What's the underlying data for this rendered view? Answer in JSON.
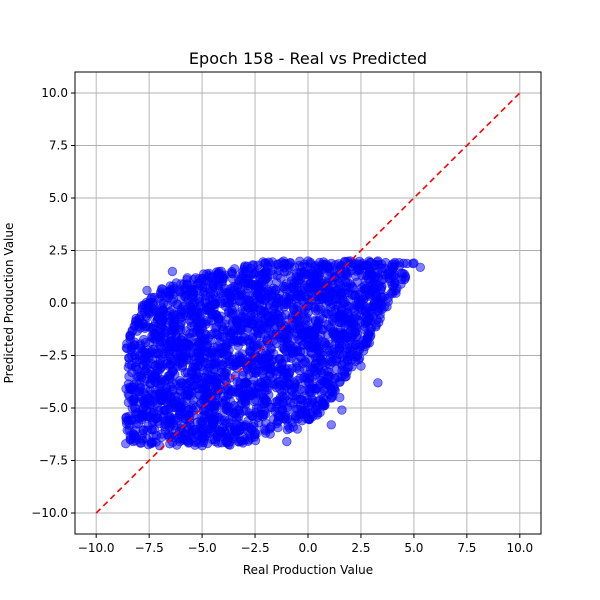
{
  "chart_data": {
    "type": "scatter",
    "title": "Epoch 158 - Real vs Predicted",
    "xlabel": "Real Production Value",
    "ylabel": "Predicted Production Value",
    "xlim": [
      -11,
      11
    ],
    "ylim": [
      -11,
      11
    ],
    "xticks": [
      "−10.0",
      "−7.5",
      "−5.0",
      "−2.5",
      "0.0",
      "2.5",
      "5.0",
      "7.5",
      "10.0"
    ],
    "yticks": [
      "10.0",
      "7.5",
      "5.0",
      "2.5",
      "0.0",
      "−2.5",
      "−5.0",
      "−7.5",
      "−10.0"
    ],
    "grid": true,
    "colors": {
      "points": "#0000ff",
      "reference_line": "#ff0000",
      "grid": "#b0b0b0"
    },
    "reference_line": {
      "from": [
        -10,
        -10
      ],
      "to": [
        10,
        10
      ],
      "style": "dashed"
    },
    "series": [
      {
        "points": [
          [
            -8.6,
            -6.7
          ],
          [
            -8.2,
            -6.3
          ],
          [
            -8.3,
            -5.0
          ],
          [
            -8.0,
            -3.5
          ],
          [
            -7.6,
            0.6
          ],
          [
            -7.2,
            -1.5
          ],
          [
            -7.0,
            -0.8
          ],
          [
            -6.5,
            0.5
          ],
          [
            -6.4,
            1.5
          ],
          [
            -5.7,
            1.2
          ],
          [
            -4.2,
            1.5
          ],
          [
            -4.5,
            0.9
          ],
          [
            -3.0,
            1.7
          ],
          [
            -2.0,
            1.9
          ],
          [
            0.0,
            2.0
          ],
          [
            2.0,
            2.0
          ],
          [
            3.3,
            2.0
          ],
          [
            4.0,
            1.6
          ],
          [
            5.0,
            1.9
          ],
          [
            5.3,
            1.7
          ],
          [
            4.6,
            1.2
          ],
          [
            4.2,
            0.7
          ],
          [
            3.5,
            -0.3
          ],
          [
            3.0,
            -1.2
          ],
          [
            2.9,
            -1.9
          ],
          [
            2.3,
            -2.5
          ],
          [
            1.8,
            -3.5
          ],
          [
            1.5,
            -4.5
          ],
          [
            1.6,
            -5.1
          ],
          [
            1.1,
            -5.8
          ],
          [
            0.7,
            -4.8
          ],
          [
            0.0,
            -5.5
          ],
          [
            -0.5,
            -6.0
          ],
          [
            -1.0,
            -6.6
          ],
          [
            -2.0,
            -6.2
          ],
          [
            -3.0,
            -6.5
          ],
          [
            -5.0,
            -6.8
          ],
          [
            -7.0,
            -6.8
          ],
          [
            -8.2,
            -2.0
          ],
          [
            -8.0,
            -4.7
          ],
          [
            3.3,
            -3.8
          ],
          [
            1.1,
            -4.2
          ],
          [
            2.5,
            -3.0
          ],
          [
            -6.0,
            -0.3
          ],
          [
            -5.5,
            -0.6
          ]
        ]
      }
    ]
  }
}
